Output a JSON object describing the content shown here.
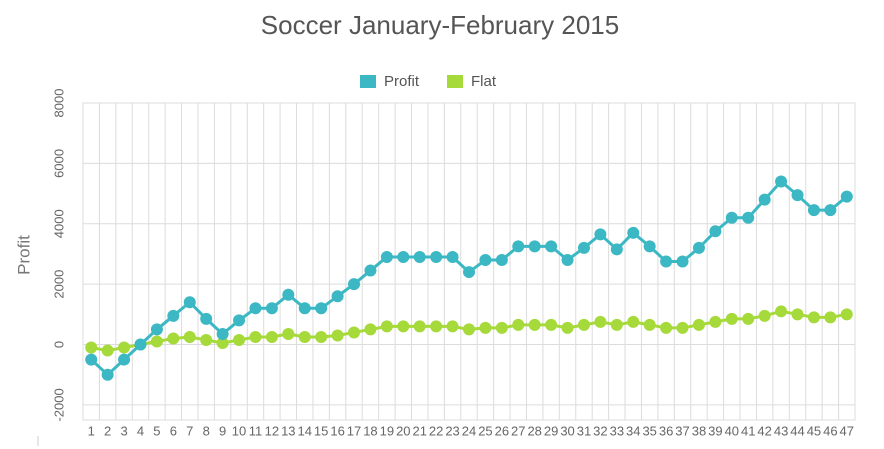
{
  "chart_data": {
    "type": "line",
    "title": "Soccer January-February 2015",
    "y_label": "Profit",
    "categories": [
      "1",
      "2",
      "3",
      "4",
      "5",
      "6",
      "7",
      "8",
      "9",
      "10",
      "11",
      "12",
      "13",
      "14",
      "15",
      "16",
      "17",
      "18",
      "19",
      "20",
      "21",
      "22",
      "23",
      "24",
      "25",
      "26",
      "27",
      "28",
      "29",
      "30",
      "31",
      "32",
      "33",
      "34",
      "35",
      "36",
      "37",
      "38",
      "39",
      "40",
      "41",
      "42",
      "43",
      "44",
      "45",
      "46",
      "47"
    ],
    "series": [
      {
        "name": "Profit",
        "color": "#3bb8c3",
        "values": [
          -500,
          -1000,
          -500,
          0,
          500,
          950,
          1400,
          850,
          350,
          800,
          1200,
          1200,
          1650,
          1200,
          1200,
          1600,
          2000,
          2450,
          2900,
          2900,
          2900,
          2900,
          2900,
          2400,
          2800,
          2800,
          3250,
          3250,
          3250,
          2800,
          3200,
          3650,
          3150,
          3700,
          3250,
          2750,
          2750,
          3200,
          3750,
          4200,
          4200,
          4800,
          5400,
          4950,
          4450,
          4450,
          4900
        ]
      },
      {
        "name": "Flat",
        "color": "#a6d93a",
        "values": [
          -100,
          -200,
          -100,
          0,
          100,
          200,
          250,
          150,
          50,
          150,
          250,
          250,
          350,
          250,
          250,
          300,
          400,
          500,
          600,
          600,
          600,
          600,
          600,
          500,
          550,
          550,
          650,
          650,
          650,
          550,
          650,
          750,
          650,
          750,
          650,
          550,
          550,
          650,
          750,
          850,
          850,
          950,
          1100,
          1000,
          900,
          900,
          1000
        ]
      }
    ],
    "ylim": [
      -2500,
      8000
    ],
    "yticks": [
      -2000,
      0,
      2000,
      4000,
      6000,
      8000
    ],
    "grid": true,
    "legend": "top"
  }
}
